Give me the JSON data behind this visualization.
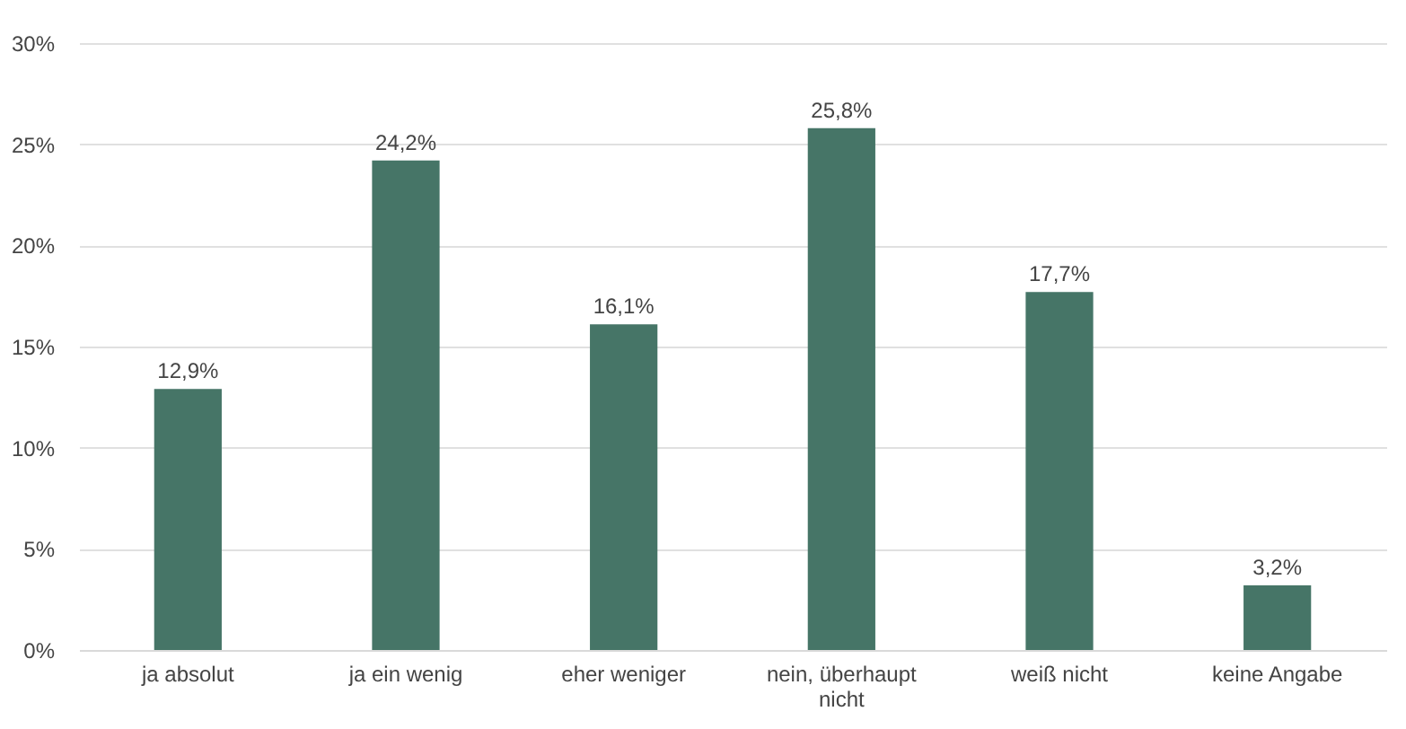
{
  "chart_data": {
    "type": "bar",
    "categories": [
      "ja absolut",
      "ja ein wenig",
      "eher weniger",
      "nein, überhaupt nicht",
      "weiß nicht",
      "keine Angabe"
    ],
    "values": [
      12.9,
      24.2,
      16.1,
      25.8,
      17.7,
      3.2
    ],
    "value_labels": [
      "12,9%",
      "24,2%",
      "16,1%",
      "25,8%",
      "17,7%",
      "3,2%"
    ],
    "color": "#467567",
    "ylim": [
      0,
      30
    ],
    "yticks": [
      {
        "value": 0,
        "label": "0%"
      },
      {
        "value": 5,
        "label": "5%"
      },
      {
        "value": 10,
        "label": "10%"
      },
      {
        "value": 15,
        "label": "15%"
      },
      {
        "value": 20,
        "label": "20%"
      },
      {
        "value": 25,
        "label": "25%"
      },
      {
        "value": 30,
        "label": "30%"
      }
    ],
    "grid": "y"
  }
}
